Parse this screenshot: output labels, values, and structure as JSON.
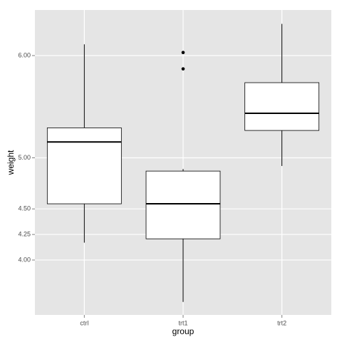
{
  "chart_data": {
    "type": "box",
    "x_label": "group",
    "y_label": "weight",
    "categories": [
      "ctrl",
      "trt1",
      "trt2"
    ],
    "boxes": [
      {
        "min": 4.17,
        "q1": 4.55,
        "median": 5.155,
        "q3": 5.293,
        "max": 6.11,
        "outliers": []
      },
      {
        "min": 3.59,
        "q1": 4.2075,
        "median": 4.55,
        "q3": 4.87,
        "max": 4.89,
        "outliers": [
          5.87,
          6.03
        ]
      },
      {
        "min": 4.92,
        "q1": 5.2675,
        "median": 5.435,
        "q3": 5.735,
        "max": 6.31,
        "outliers": []
      }
    ],
    "ylim": [
      3.463,
      6.446
    ],
    "yticks": [
      {
        "value": 4,
        "label": "4.00"
      },
      {
        "value": 4.25,
        "label": "4.25"
      },
      {
        "value": 4.5,
        "label": "4.50"
      },
      {
        "value": 5,
        "label": "5.00"
      },
      {
        "value": 6,
        "label": "6.00"
      }
    ],
    "grid": true,
    "color": "#000000",
    "box_fill": "#ffffff"
  }
}
